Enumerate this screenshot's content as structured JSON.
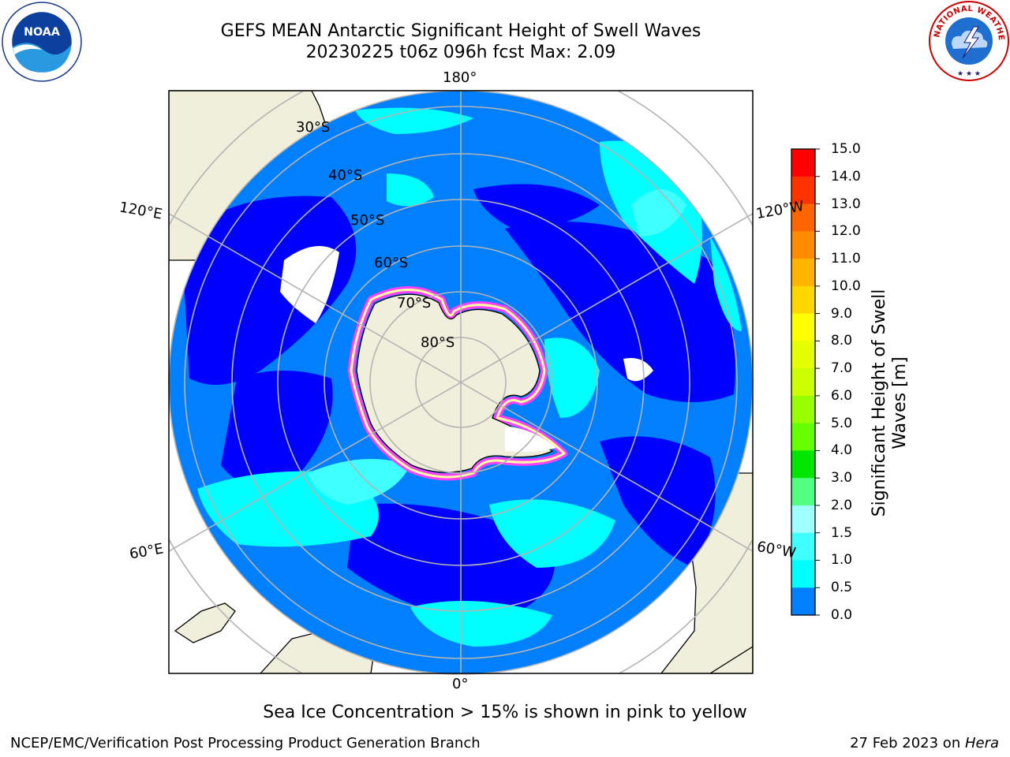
{
  "title": {
    "line1": "GEFS MEAN Antarctic Significant Height of Swell Waves",
    "line2": "20230225 t06z 096h fcst   Max: 2.09"
  },
  "map": {
    "longitude_labels": {
      "top": "180°",
      "bottom": "0°",
      "upper_left": "120°E",
      "upper_right": "120°W",
      "lower_left": "60°E",
      "lower_right": "60°W"
    },
    "latitude_labels": [
      "30°S",
      "40°S",
      "50°S",
      "60°S",
      "70°S",
      "80°S"
    ],
    "colors": {
      "land": "#efefdb",
      "ocean_dark": "#0000ff",
      "ocean_mid": "#0080ff",
      "ocean_light": "#00ffff",
      "ocean_pale": "#40ffff",
      "sea_ice": "#ff40ff"
    }
  },
  "colorbar": {
    "label": "Significant Height of Swell Waves [m]",
    "label_line1": "Significant Height of Swell",
    "label_line2": "Waves [m]",
    "ticks": [
      "15.0",
      "14.0",
      "13.0",
      "12.0",
      "11.0",
      "10.0",
      "9.0",
      "8.0",
      "7.0",
      "6.0",
      "5.0",
      "4.0",
      "3.0",
      "2.0",
      "1.5",
      "1.0",
      "0.5",
      "0.0"
    ],
    "colors": [
      "#ff0000",
      "#ff3300",
      "#ff6600",
      "#ff8c00",
      "#ffb400",
      "#ffd700",
      "#ffff00",
      "#e6ff00",
      "#ccff00",
      "#99ff00",
      "#66ff00",
      "#00e600",
      "#50ff80",
      "#a0ffff",
      "#40ffff",
      "#00ffff",
      "#0080ff",
      "#0000ff"
    ]
  },
  "footer": {
    "note": "Sea Ice Concentration > 15% is shown in pink to yellow",
    "credit": "NCEP/EMC/Verification Post Processing Product Generation Branch",
    "date_prefix": "27 Feb 2023 on ",
    "date_host": "Hera"
  },
  "logos": {
    "noaa": "NOAA",
    "nws": "NATIONAL WEATHER SERVICE"
  }
}
